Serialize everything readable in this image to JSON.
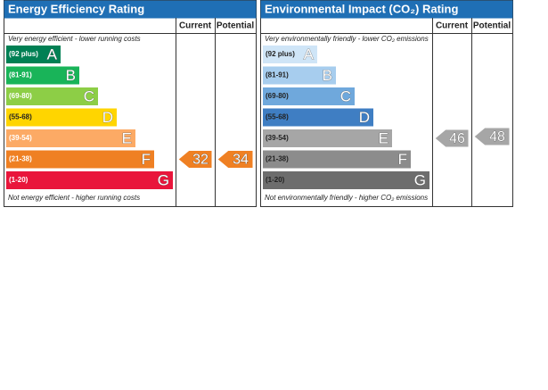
{
  "panels": [
    {
      "title": "Energy Efficiency Rating",
      "columns": [
        "Current",
        "Potential"
      ],
      "top_note": "Very energy efficient - lower running costs",
      "bottom_note": "Not energy efficient - higher running costs",
      "bands": [
        {
          "range": "(92 plus)",
          "letter": "A",
          "color": "#008054"
        },
        {
          "range": "(81-91)",
          "letter": "B",
          "color": "#19b459"
        },
        {
          "range": "(69-80)",
          "letter": "C",
          "color": "#8dce46"
        },
        {
          "range": "(55-68)",
          "letter": "D",
          "color": "#ffd500"
        },
        {
          "range": "(39-54)",
          "letter": "E",
          "color": "#fcaa65"
        },
        {
          "range": "(21-38)",
          "letter": "F",
          "color": "#ef8023"
        },
        {
          "range": "(1-20)",
          "letter": "G",
          "color": "#e9153b"
        }
      ],
      "current": 32,
      "potential": 34
    },
    {
      "title": "Environmental Impact (CO₂) Rating",
      "columns": [
        "Current",
        "Potential"
      ],
      "top_note": "Very environmentally friendly - lower CO₂ emissions",
      "bottom_note": "Not environmentally friendly - higher CO₂ emissions",
      "bands": [
        {
          "range": "(92 plus)",
          "letter": "A",
          "color": "#cfe5f7"
        },
        {
          "range": "(81-91)",
          "letter": "B",
          "color": "#a7cdee"
        },
        {
          "range": "(69-80)",
          "letter": "C",
          "color": "#6fa8dc"
        },
        {
          "range": "(55-68)",
          "letter": "D",
          "color": "#3f7ec3"
        },
        {
          "range": "(39-54)",
          "letter": "E",
          "color": "#a6a6a6"
        },
        {
          "range": "(21-38)",
          "letter": "F",
          "color": "#8c8c8c"
        },
        {
          "range": "(1-20)",
          "letter": "G",
          "color": "#6d6d6d"
        }
      ],
      "current": 46,
      "potential": 48
    }
  ]
}
